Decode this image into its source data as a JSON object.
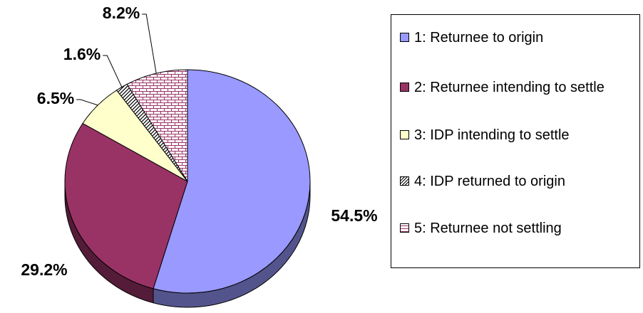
{
  "chart_data": {
    "type": "pie",
    "categories": [
      "1: Returnee to origin",
      "2: Returnee intending to settle",
      "3: IDP intending to settle",
      "4: IDP returned to origin",
      "5: Returnee not settling"
    ],
    "values": [
      54.5,
      29.2,
      6.5,
      1.6,
      8.2
    ],
    "value_labels": [
      "54.5%",
      "29.2%",
      "6.5%",
      "1.6%",
      "8.2%"
    ],
    "colors": [
      "#9999ff",
      "#993366",
      "#ffffcc",
      "#ffffff",
      "#ffffff"
    ],
    "patterns": [
      null,
      null,
      null,
      "hatch",
      "brick"
    ],
    "legend": "right"
  }
}
